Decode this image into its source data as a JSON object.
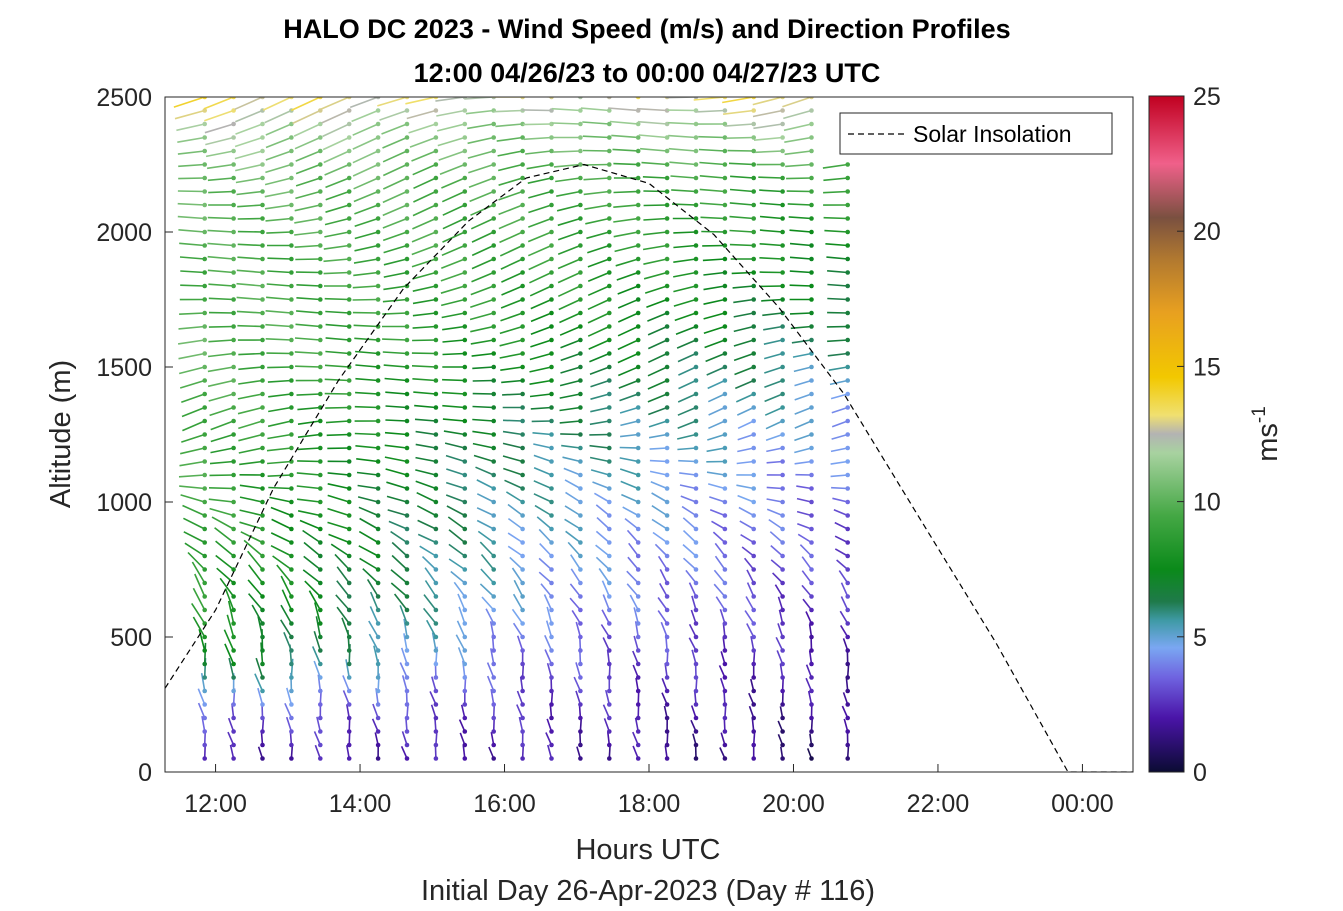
{
  "chart_data": {
    "type": "scatter",
    "subtype": "wind barb time-height profile",
    "title": "HALO DC 2023 - Wind Speed (m/s) and Direction Profiles",
    "subtitle": "12:00 04/26/23 to 00:00 04/27/23  UTC",
    "xlabel": "Hours UTC",
    "xlabel2": "Initial Day 26-Apr-2023 (Day # 116)",
    "ylabel": "Altitude (m)",
    "xlim": [
      11.3,
      24.7
    ],
    "ylim": [
      0,
      2500
    ],
    "x_ticks": [
      12,
      14,
      16,
      18,
      20,
      22,
      24
    ],
    "x_tick_labels": [
      "12:00",
      "14:00",
      "16:00",
      "18:00",
      "20:00",
      "22:00",
      "00:00"
    ],
    "y_ticks": [
      0,
      500,
      1000,
      1500,
      2000,
      2500
    ],
    "y_tick_labels": [
      "0",
      "500",
      "1000",
      "1500",
      "2000",
      "2500"
    ],
    "grid": false,
    "legend": {
      "placement": "top-right",
      "entries": [
        {
          "label": "Solar Insolation",
          "style": "dashed-black"
        }
      ]
    },
    "colorbar": {
      "label": "ms",
      "label_superscript": "-1",
      "range": [
        0,
        25
      ],
      "ticks": [
        0,
        5,
        10,
        15,
        20,
        25
      ],
      "tick_labels": [
        "0",
        "5",
        "10",
        "15",
        "20",
        "25"
      ],
      "colors": [
        {
          "v": 0,
          "c": "#0b0b33"
        },
        {
          "v": 2,
          "c": "#4a14a8"
        },
        {
          "v": 3.5,
          "c": "#6f63e0"
        },
        {
          "v": 4.6,
          "c": "#7aa7f2"
        },
        {
          "v": 5.6,
          "c": "#3f9aa6"
        },
        {
          "v": 6.3,
          "c": "#1f7a4a"
        },
        {
          "v": 7.5,
          "c": "#0b8a1a"
        },
        {
          "v": 9.5,
          "c": "#45a845"
        },
        {
          "v": 11.8,
          "c": "#a8d2a0"
        },
        {
          "v": 12.5,
          "c": "#b3b3b3"
        },
        {
          "v": 13.2,
          "c": "#f0e070"
        },
        {
          "v": 14.6,
          "c": "#f2c800"
        },
        {
          "v": 17,
          "c": "#e8a020"
        },
        {
          "v": 19,
          "c": "#b07830"
        },
        {
          "v": 20.5,
          "c": "#7a5040"
        },
        {
          "v": 22.5,
          "c": "#f0608a"
        },
        {
          "v": 25,
          "c": "#c00020"
        }
      ]
    },
    "solar_insolation_curve": {
      "x": [
        11.3,
        12.0,
        12.8,
        13.7,
        14.6,
        15.5,
        16.3,
        17.1,
        18.0,
        18.9,
        19.8,
        20.7,
        21.7,
        22.8,
        23.8,
        24.7
      ],
      "y": [
        310,
        600,
        1050,
        1450,
        1790,
        2040,
        2200,
        2250,
        2180,
        1990,
        1720,
        1400,
        960,
        480,
        0,
        0
      ]
    },
    "profile_times": [
      11.85,
      12.25,
      12.65,
      13.05,
      13.45,
      13.85,
      14.25,
      14.65,
      15.05,
      15.45,
      15.85,
      16.25,
      16.65,
      17.05,
      17.45,
      17.85,
      18.25,
      18.65,
      19.05,
      19.45,
      19.85,
      20.25,
      20.75
    ],
    "profile_tops": [
      2500,
      2500,
      2500,
      2500,
      2500,
      2500,
      2500,
      2500,
      2500,
      2500,
      2500,
      2500,
      2500,
      2500,
      2500,
      2500,
      2500,
      2500,
      2500,
      2500,
      2500,
      2500,
      2250
    ],
    "altitude_step_m": 50,
    "speed_profile": {
      "altitudes": [
        0,
        200,
        400,
        600,
        800,
        1000,
        1300,
        1600,
        1900,
        2200,
        2400,
        2500
      ],
      "early_speeds": [
        1.5,
        3.5,
        7.5,
        8.5,
        9.0,
        9.2,
        9.5,
        10.0,
        9.5,
        10.5,
        12.0,
        13.5
      ],
      "mid_speeds": [
        2.0,
        2.5,
        3.5,
        4.5,
        5.0,
        5.5,
        6.5,
        8.0,
        9.0,
        9.5,
        11.0,
        12.5
      ],
      "late_speeds": [
        0.8,
        1.5,
        2.0,
        2.5,
        3.0,
        3.5,
        4.5,
        6.0,
        7.5,
        9.0,
        12.0,
        13.5
      ]
    },
    "direction_note": "Low levels: barbs point mostly downward (southerly flow); upper levels: near-horizontal westerly flow."
  }
}
